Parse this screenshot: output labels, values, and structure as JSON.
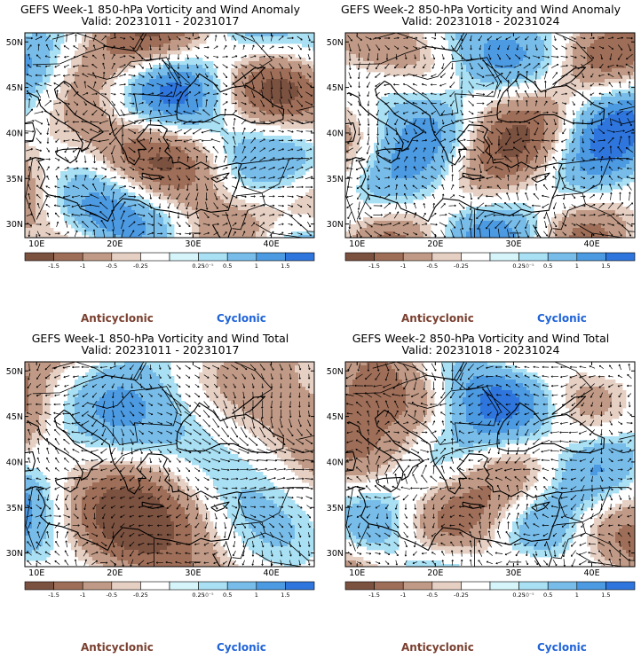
{
  "colors": {
    "bins": [
      "#7b5140",
      "#9e6e58",
      "#c09a86",
      "#e6cfc3",
      "#ffffff",
      "#d6f5fb",
      "#a9e0f4",
      "#78bdea",
      "#4c9ae2",
      "#2e76dd"
    ],
    "anticyclonic": "#7a4030",
    "cyclonic": "#1f63d8"
  },
  "colorbar": {
    "tick_labels": [
      "-1.5",
      "-1",
      "-0.5",
      "-0.25",
      "0.25",
      "0.5",
      "1",
      "1.5"
    ],
    "scale_label": "10⁻⁵"
  },
  "axes": {
    "lat_labels": [
      "50N",
      "45N",
      "40N",
      "35N",
      "30N"
    ],
    "lon_labels": [
      "10E",
      "20E",
      "30E",
      "40E"
    ]
  },
  "legend_words": {
    "anticyclonic": "Anticyclonic",
    "cyclonic": "Cyclonic"
  },
  "panels": [
    {
      "title": "GEFS Week-1 850-hPa Vorticity and Wind Anomaly",
      "valid": "Valid: 20231011 - 20231017",
      "seed": 3,
      "bias": -0.15
    },
    {
      "title": "GEFS Week-2 850-hPa Vorticity and Wind Anomaly",
      "valid": "Valid: 20231018 - 20231024",
      "seed": 11,
      "bias": 0.05
    },
    {
      "title": "GEFS Week-1 850-hPa Vorticity and Wind Total",
      "valid": "Valid: 20231011 - 20231017",
      "seed": 23,
      "bias": -0.35
    },
    {
      "title": "GEFS Week-2 850-hPa Vorticity and Wind Total",
      "valid": "Valid: 20231018 - 20231024",
      "seed": 37,
      "bias": -0.2
    }
  ]
}
